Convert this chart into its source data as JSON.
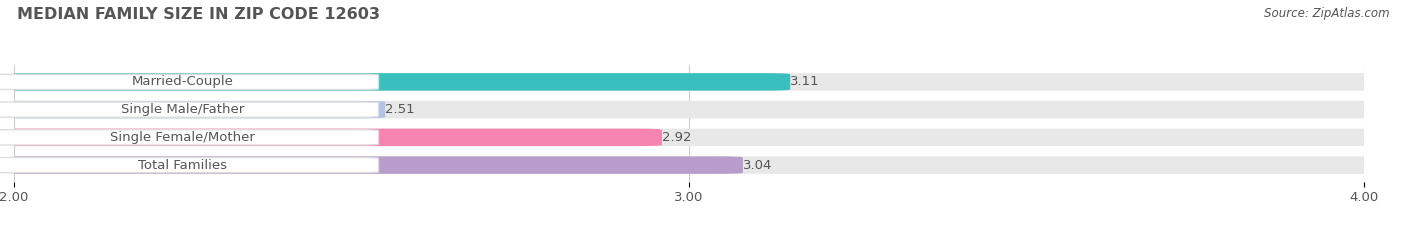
{
  "title": "MEDIAN FAMILY SIZE IN ZIP CODE 12603",
  "source": "Source: ZipAtlas.com",
  "categories": [
    "Married-Couple",
    "Single Male/Father",
    "Single Female/Mother",
    "Total Families"
  ],
  "values": [
    3.11,
    2.51,
    2.92,
    3.04
  ],
  "colors": [
    "#3abfbf",
    "#b0c4e8",
    "#f585b0",
    "#b89dcc"
  ],
  "bar_bg_color": "#e8e8e8",
  "xlim": [
    2.0,
    4.0
  ],
  "xticks": [
    2.0,
    3.0,
    4.0
  ],
  "xtick_labels": [
    "2.00",
    "3.00",
    "4.00"
  ],
  "bar_height": 0.55,
  "title_fontsize": 11.5,
  "label_fontsize": 9.5,
  "value_fontsize": 9.5,
  "source_fontsize": 8.5,
  "bg_color": "#ffffff",
  "text_color": "#555555",
  "title_color": "#555555",
  "label_pill_color": "#ffffff",
  "label_pill_border": "#dddddd"
}
